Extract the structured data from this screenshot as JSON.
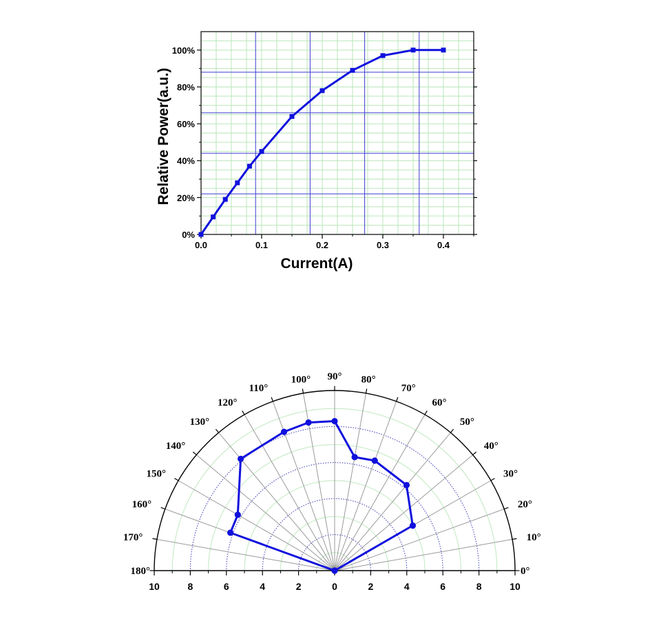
{
  "chart_data": [
    {
      "type": "line",
      "title": "",
      "xlabel": "Current(A)",
      "ylabel": "Relative Power(a.u.)",
      "xlim": [
        0,
        0.45
      ],
      "ylim": [
        0,
        110
      ],
      "x_ticks": [
        0.0,
        0.1,
        0.2,
        0.3,
        0.4
      ],
      "x_tick_labels": [
        "0.0",
        "0.1",
        "0.2",
        "0.3",
        "0.4"
      ],
      "y_ticks": [
        0,
        20,
        40,
        60,
        80,
        100
      ],
      "y_tick_labels": [
        "0%",
        "20%",
        "40%",
        "60%",
        "80%",
        "100%"
      ],
      "grid": true,
      "line_color": "#1010dd",
      "grid_color_major": "#3a3ad0",
      "grid_color_minor": "#b8e6b8",
      "series": [
        {
          "x": [
            0.0,
            0.02,
            0.04,
            0.06,
            0.08,
            0.1,
            0.15,
            0.2,
            0.25,
            0.3,
            0.35,
            0.4
          ],
          "y": [
            0,
            9.5,
            19,
            28,
            37,
            45,
            64,
            78,
            89,
            97,
            100,
            100
          ]
        }
      ]
    },
    {
      "type": "polar",
      "title": "",
      "angular_range_deg": [
        0,
        180
      ],
      "angle_labels": [
        "0°",
        "10°",
        "20°",
        "30°",
        "40°",
        "50°",
        "60°",
        "70°",
        "80°",
        "90°",
        "100°",
        "110°",
        "120°",
        "130°",
        "140°",
        "150°",
        "160°",
        "170°",
        "180°"
      ],
      "radial_max": 10,
      "radial_tick_labels": [
        "10",
        "8",
        "6",
        "4",
        "2",
        "0",
        "2",
        "4",
        "6",
        "8",
        "10"
      ],
      "grid": true,
      "line_color": "#1010dd",
      "series": [
        {
          "angles_deg": [
            0,
            30,
            50,
            70,
            80,
            90,
            100,
            110,
            130,
            150,
            160,
            180
          ],
          "r": [
            0,
            5,
            6.2,
            6.5,
            6.4,
            8.3,
            8.35,
            8.2,
            8.1,
            6.2,
            6.15,
            0
          ]
        }
      ]
    }
  ]
}
